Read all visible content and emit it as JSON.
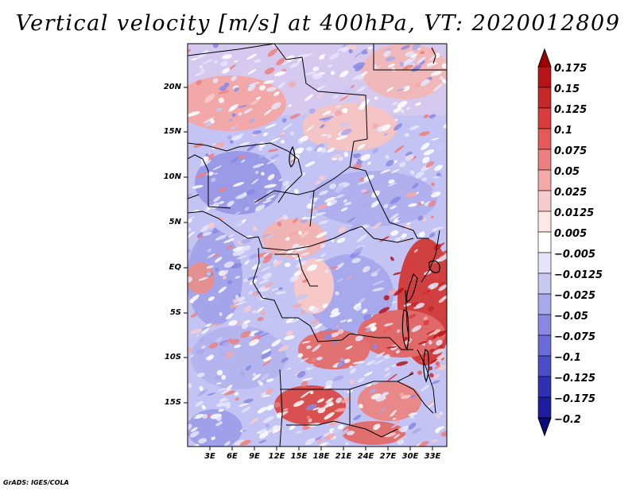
{
  "title": "Vertical velocity [m/s] at 400hPa, VT: 2020012809",
  "map": {
    "variable": "Vertical velocity",
    "units": "m/s",
    "level": "400hPa",
    "valid_time": "2020012809",
    "lat_labels": [
      "20N",
      "15N",
      "10N",
      "5N",
      "EQ",
      "5S",
      "10S",
      "15S"
    ],
    "lon_labels": [
      "3E",
      "6E",
      "9E",
      "12E",
      "15E",
      "18E",
      "21E",
      "24E",
      "27E",
      "30E",
      "33E"
    ]
  },
  "colorbar": {
    "labels": [
      "0.175",
      "0.15",
      "0.125",
      "0.1",
      "0.075",
      "0.05",
      "0.025",
      "0.0125",
      "0.005",
      "−0.005",
      "−0.0125",
      "−0.025",
      "−0.05",
      "−0.075",
      "−0.1",
      "−0.125",
      "−0.175",
      "−0.2"
    ],
    "colors": [
      "#a00000",
      "#b71418",
      "#c62828",
      "#d83c3c",
      "#e45a5a",
      "#ec8080",
      "#f4a8a8",
      "#f9cccc",
      "#fde8e8",
      "#ffffff",
      "#e6e6fb",
      "#c8c8f3",
      "#a8a8ec",
      "#8888e2",
      "#6a6ad8",
      "#4c4cc9",
      "#3030b5",
      "#1c1c9c",
      "#0a0a7a"
    ]
  },
  "footer": "GrADS: IGES/COLA"
}
